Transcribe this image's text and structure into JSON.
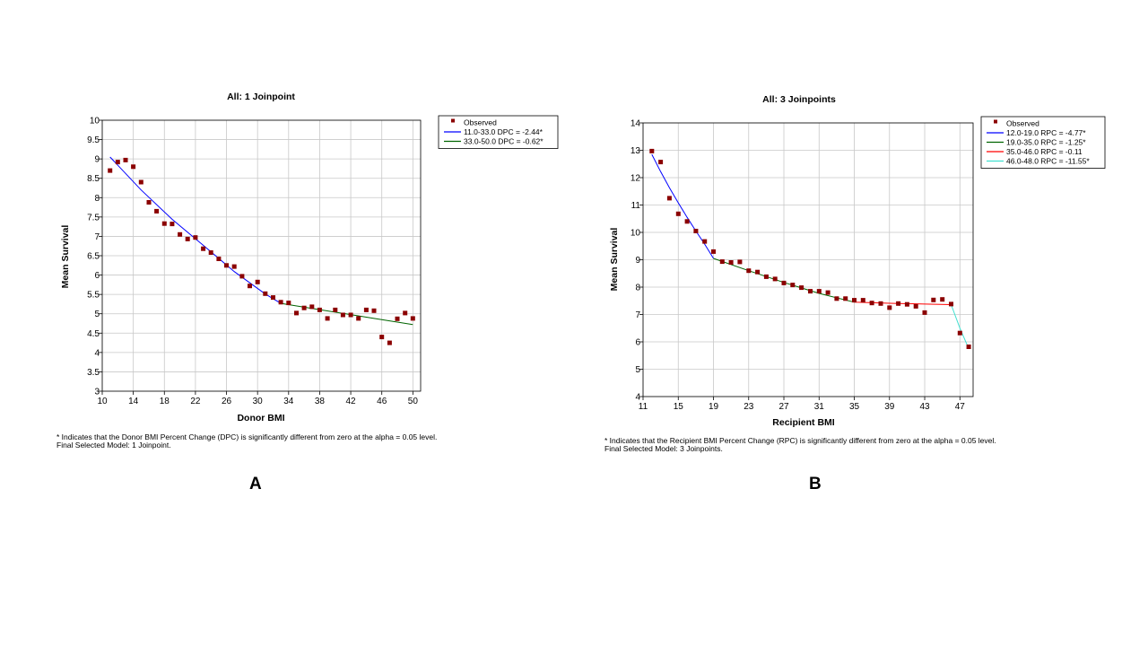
{
  "chart_data": [
    {
      "type": "scatter",
      "title": "All: 1 Joinpoint",
      "xlabel": "Donor BMI",
      "ylabel": "Mean Survival",
      "xlim": [
        10,
        51
      ],
      "ylim": [
        3,
        10
      ],
      "xticks": [
        "10",
        "14",
        "18",
        "22",
        "26",
        "30",
        "34",
        "38",
        "42",
        "46",
        "50"
      ],
      "yticks": [
        "3",
        "3.5",
        "4",
        "4.5",
        "5",
        "5.5",
        "6",
        "6.5",
        "7",
        "7.5",
        "8",
        "8.5",
        "9",
        "9.5",
        "10"
      ],
      "grid": true,
      "legend_position": "top-right outside",
      "legend": [
        {
          "label": "Observed",
          "kind": "marker",
          "color": "#8b0000"
        },
        {
          "label": "11.0-33.0 DPC  = -2.44*",
          "kind": "line",
          "color": "#0000ff"
        },
        {
          "label": "33.0-50.0 DPC  = -0.62*",
          "kind": "line",
          "color": "#006400"
        }
      ],
      "observed": {
        "name": "Observed",
        "x": [
          11,
          12,
          13,
          14,
          15,
          16,
          17,
          18,
          19,
          20,
          21,
          22,
          23,
          24,
          25,
          26,
          27,
          28,
          29,
          30,
          31,
          32,
          33,
          34,
          35,
          36,
          37,
          38,
          39,
          40,
          41,
          42,
          43,
          44,
          45,
          46,
          47,
          48,
          49,
          50
        ],
        "y": [
          8.7,
          8.92,
          8.97,
          8.8,
          8.4,
          7.88,
          7.65,
          7.33,
          7.32,
          7.05,
          6.93,
          6.97,
          6.68,
          6.58,
          6.42,
          6.25,
          6.22,
          5.97,
          5.72,
          5.82,
          5.52,
          5.42,
          5.3,
          5.28,
          5.02,
          5.15,
          5.18,
          5.1,
          4.88,
          5.1,
          4.97,
          4.97,
          4.88,
          5.1,
          5.08,
          4.4,
          4.25,
          4.87,
          5.02,
          4.88
        ]
      },
      "series": [
        {
          "name": "11.0-33.0 DPC  = -2.44*",
          "color": "#0000ff",
          "x": [
            11,
            15,
            19,
            23,
            27,
            31,
            33
          ],
          "y": [
            9.05,
            8.2,
            7.44,
            6.77,
            6.09,
            5.51,
            5.27
          ]
        },
        {
          "name": "33.0-50.0 DPC  = -0.62*",
          "color": "#006400",
          "x": [
            33,
            37,
            41,
            45,
            50
          ],
          "y": [
            5.27,
            5.14,
            5.01,
            4.88,
            4.72
          ]
        }
      ],
      "footnote": [
        "* Indicates that the Donor BMI Percent Change (DPC) is significantly different from zero at the alpha = 0.05 level.",
        "Final Selected Model: 1 Joinpoint."
      ],
      "panel_label": "A"
    },
    {
      "type": "scatter",
      "title": "All: 3 Joinpoints",
      "xlabel": "Recipient BMI",
      "ylabel": "Mean Survival",
      "xlim": [
        11,
        48.5
      ],
      "ylim": [
        4,
        14
      ],
      "xticks": [
        "11",
        "15",
        "19",
        "23",
        "27",
        "31",
        "35",
        "39",
        "43",
        "47"
      ],
      "yticks": [
        "4",
        "5",
        "6",
        "7",
        "8",
        "9",
        "10",
        "11",
        "12",
        "13",
        "14"
      ],
      "grid": true,
      "legend_position": "top-right outside",
      "legend": [
        {
          "label": "Observed",
          "kind": "marker",
          "color": "#8b0000"
        },
        {
          "label": "12.0-19.0 RPC  =  -4.77*",
          "kind": "line",
          "color": "#0000ff"
        },
        {
          "label": "19.0-35.0 RPC  =  -1.25*",
          "kind": "line",
          "color": "#006400"
        },
        {
          "label": "35.0-46.0 RPC  =  -0.11",
          "kind": "line",
          "color": "#ff0000"
        },
        {
          "label": "46.0-48.0 RPC  = -11.55*",
          "kind": "line",
          "color": "#40e0d0"
        }
      ],
      "observed": {
        "name": "Observed",
        "x": [
          12,
          13,
          14,
          15,
          16,
          17,
          18,
          19,
          20,
          21,
          22,
          23,
          24,
          25,
          26,
          27,
          28,
          29,
          30,
          31,
          32,
          33,
          34,
          35,
          36,
          37,
          38,
          39,
          40,
          41,
          42,
          43,
          44,
          45,
          46,
          47,
          48
        ],
        "y": [
          12.97,
          12.57,
          11.25,
          10.68,
          10.4,
          10.05,
          9.67,
          9.3,
          8.93,
          8.9,
          8.92,
          8.6,
          8.55,
          8.38,
          8.3,
          8.15,
          8.08,
          7.98,
          7.85,
          7.85,
          7.8,
          7.58,
          7.58,
          7.52,
          7.52,
          7.42,
          7.4,
          7.25,
          7.4,
          7.37,
          7.3,
          7.07,
          7.53,
          7.55,
          7.38,
          6.32,
          5.82
        ]
      },
      "series": [
        {
          "name": "12.0-19.0 RPC  =  -4.77*",
          "color": "#0000ff",
          "x": [
            12,
            13,
            14,
            15,
            16,
            17,
            18,
            19
          ],
          "y": [
            12.85,
            12.22,
            11.63,
            11.08,
            10.55,
            10.05,
            9.57,
            9.05
          ]
        },
        {
          "name": "19.0-35.0 RPC  =  -1.25*",
          "color": "#006400",
          "x": [
            19,
            23,
            27,
            31,
            35
          ],
          "y": [
            9.05,
            8.6,
            8.17,
            7.77,
            7.45
          ]
        },
        {
          "name": "35.0-46.0 RPC  =  -0.11",
          "color": "#ff0000",
          "x": [
            35,
            39,
            43,
            46
          ],
          "y": [
            7.45,
            7.41,
            7.38,
            7.36
          ]
        },
        {
          "name": "46.0-48.0 RPC  = -11.55*",
          "color": "#40e0d0",
          "x": [
            46,
            47,
            48
          ],
          "y": [
            7.36,
            6.5,
            5.75
          ]
        }
      ],
      "footnote": [
        "* Indicates that the Recipient BMI Percent Change (RPC) is significantly different from zero at the alpha = 0.05 level.",
        "Final Selected Model: 3 Joinpoints."
      ],
      "panel_label": "B"
    }
  ]
}
